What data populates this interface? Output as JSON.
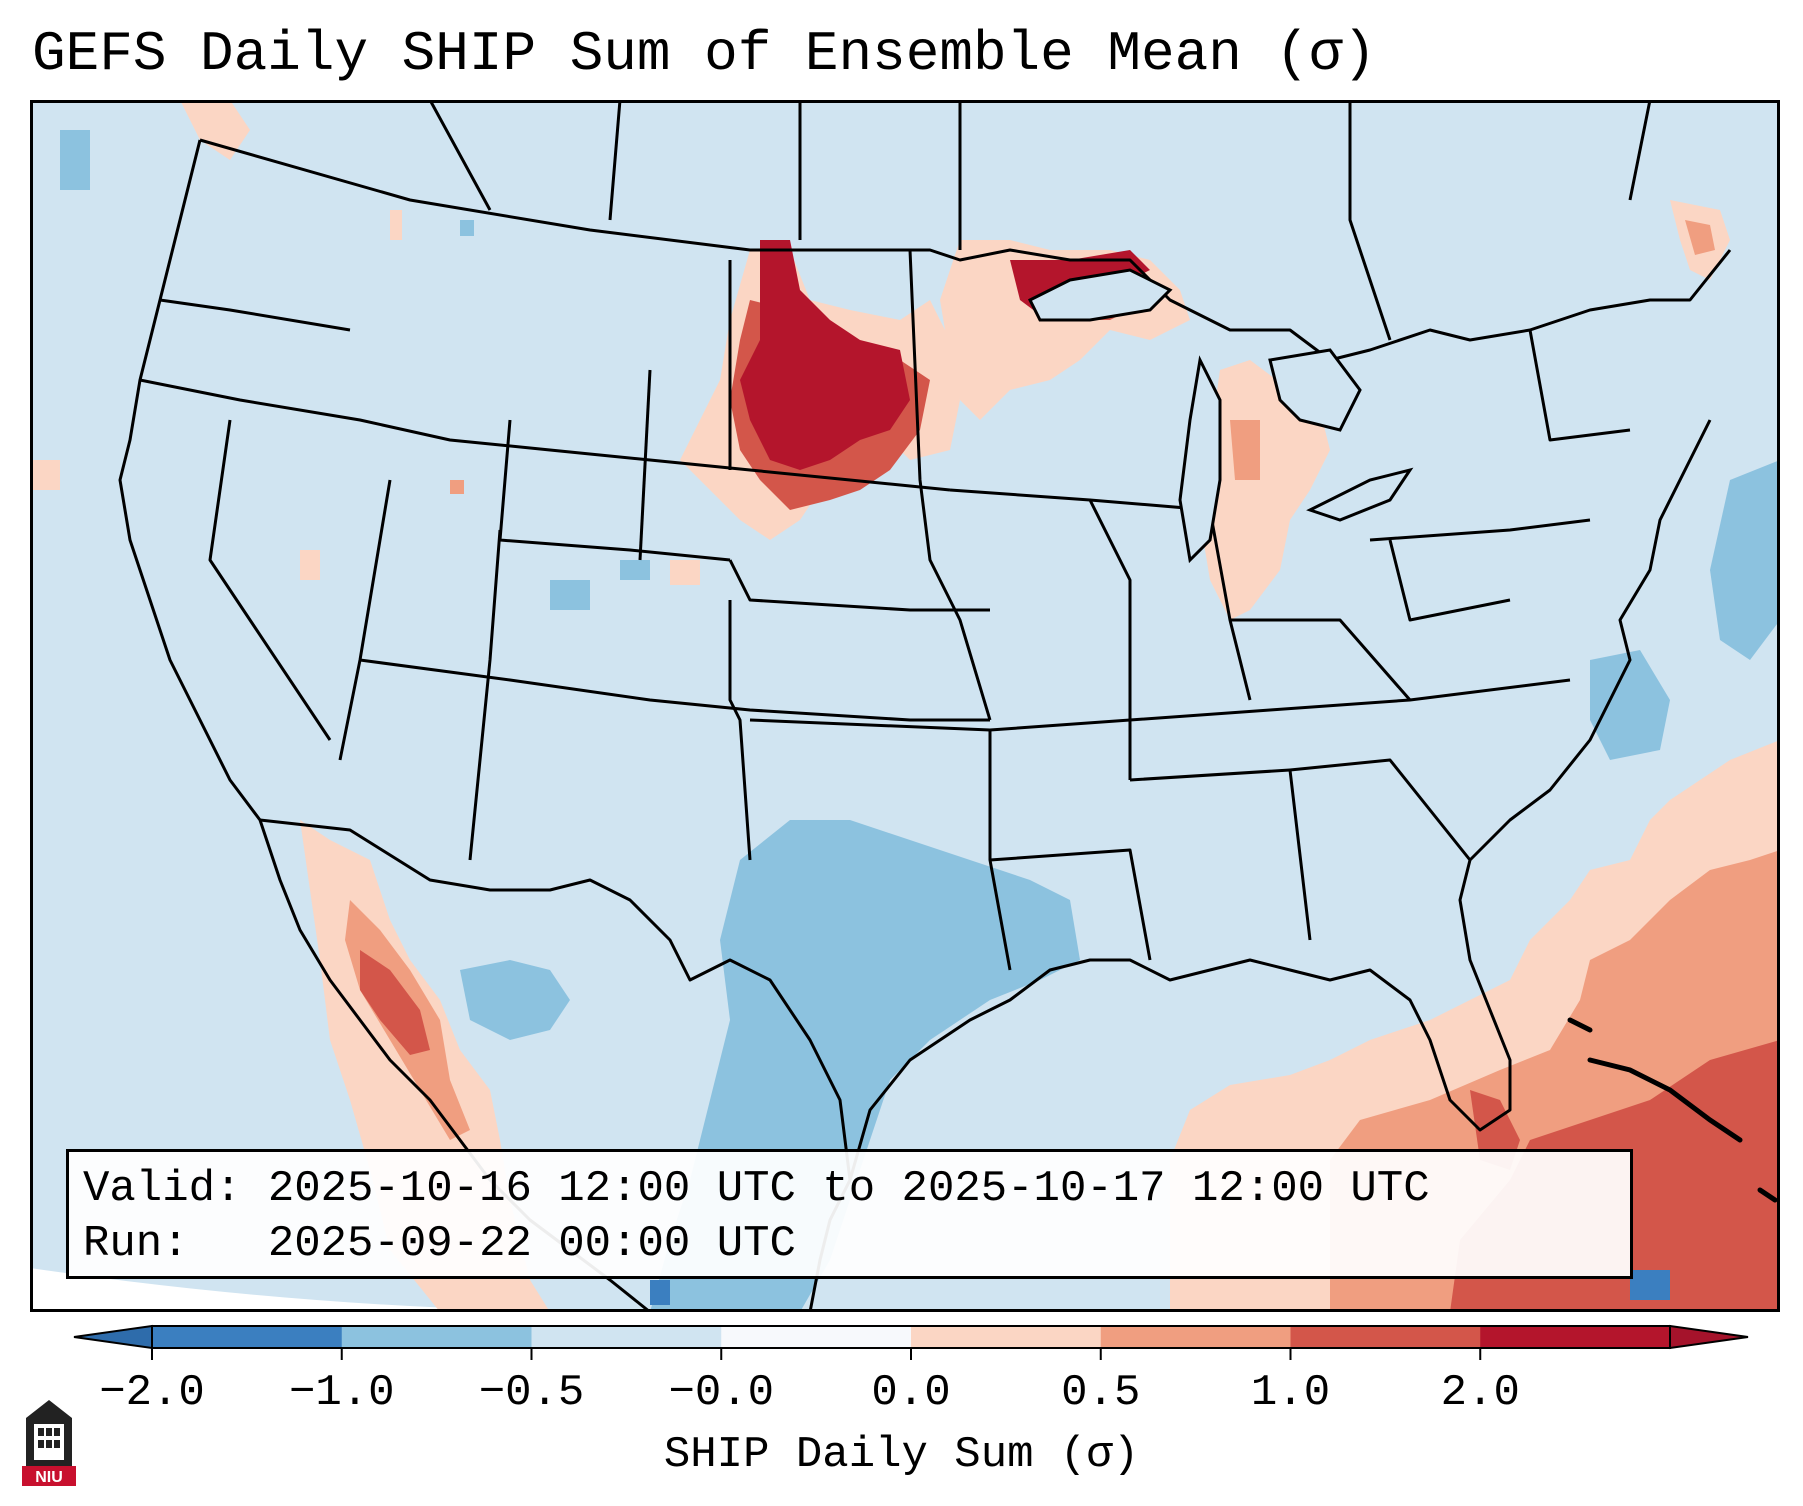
{
  "title": "GEFS Daily SHIP Sum of Ensemble Mean (σ)",
  "info": {
    "valid_line": "Valid: 2025-10-16 12:00 UTC to 2025-10-17 12:00 UTC",
    "run_line": "Run:   2025-09-22 00:00 UTC"
  },
  "colorbar": {
    "label": "SHIP Daily Sum (σ)",
    "ticks": [
      "−2.0",
      "−1.0",
      "−0.5",
      "−0.0",
      "0.0",
      "0.5",
      "1.0",
      "2.0"
    ],
    "colors": [
      "#3b7fc0",
      "#8cc2df",
      "#d0e4f1",
      "#f7f9fc",
      "#fbd6c4",
      "#f09e80",
      "#d3564a",
      "#b4152c"
    ],
    "extend_low_color": "#2e6cab",
    "extend_high_color": "#a5132b"
  },
  "map": {
    "background_color": "#d0e4f1",
    "land_color": "#d0e4f1",
    "anomaly_regions": [
      {
        "name": "northern-plains",
        "level": "2.0"
      },
      {
        "name": "upper-great-lakes",
        "level": "2.0"
      },
      {
        "name": "gulf-of-mexico-caribbean",
        "level": "1.0"
      },
      {
        "name": "western-mexico",
        "level": "1.0"
      },
      {
        "name": "texas-gulf-coast",
        "level": "-1.0"
      },
      {
        "name": "western-atlantic",
        "level": "-1.0"
      }
    ]
  },
  "logo": {
    "text": "NIU",
    "icon": "niu-building-icon"
  }
}
